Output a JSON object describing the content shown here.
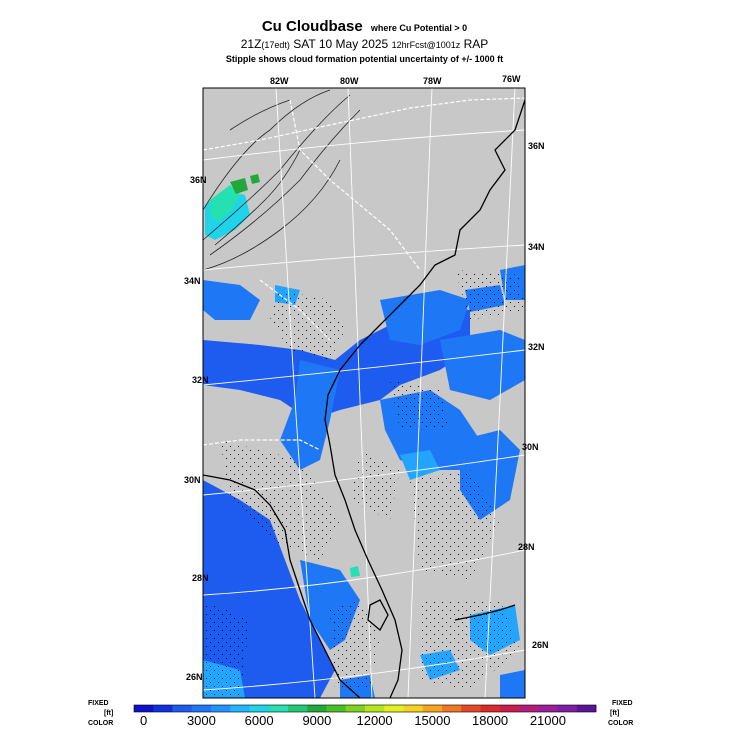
{
  "header": {
    "title": "Cu Cloudbase",
    "title_note": "where Cu Potential > 0",
    "valid_prefix": "21Z",
    "valid_local": "(17edt)",
    "valid_date": "SAT 10 May 2025",
    "forecast_info": "12hrFcst@1001z",
    "model": "RAP",
    "stipple_note": "Stipple shows cloud formation potential uncertainty of +/- 1000 ft"
  },
  "map": {
    "top_lon_labels": [
      "82W",
      "80W",
      "78W",
      "76W"
    ],
    "right_lat_labels": [
      "36N",
      "34N",
      "32N",
      "30N",
      "28N",
      "26N"
    ],
    "left_lat_labels": [
      "36N",
      "34N",
      "32N",
      "30N",
      "28N",
      "26N"
    ],
    "colors": {
      "no_data": "#c8c8c8",
      "cu_blue": "#1e5cf0",
      "cu_mid": "#1e78f5",
      "cu_light": "#23a5ff",
      "cu_cyan": "#20d3e8",
      "cu_teal": "#25e0b0",
      "cu_green": "#22a83a"
    }
  },
  "colorbar": {
    "left_label_top": "FIXED",
    "left_label_mid": "[ft]",
    "left_label_bot": "COLOR",
    "right_label_top": "FIXED",
    "right_label_mid": "[ft]",
    "right_label_bot": "COLOR",
    "tick_labels": [
      "0",
      "3000",
      "6000",
      "9000",
      "12000",
      "15000",
      "18000",
      "21000"
    ],
    "colors": [
      "#1010c8",
      "#1030e0",
      "#1e5cf0",
      "#1e78f5",
      "#2394ff",
      "#23b4ff",
      "#20d3e8",
      "#25e0b0",
      "#22c878",
      "#22a83a",
      "#4bbf2a",
      "#7ed221",
      "#b4e61e",
      "#e6f01e",
      "#f5d21e",
      "#f5a51e",
      "#f07823",
      "#e64b28",
      "#dc2a2a",
      "#c81e4b",
      "#b41e78",
      "#9b1e9b",
      "#7d1ea5",
      "#5a1496"
    ]
  }
}
